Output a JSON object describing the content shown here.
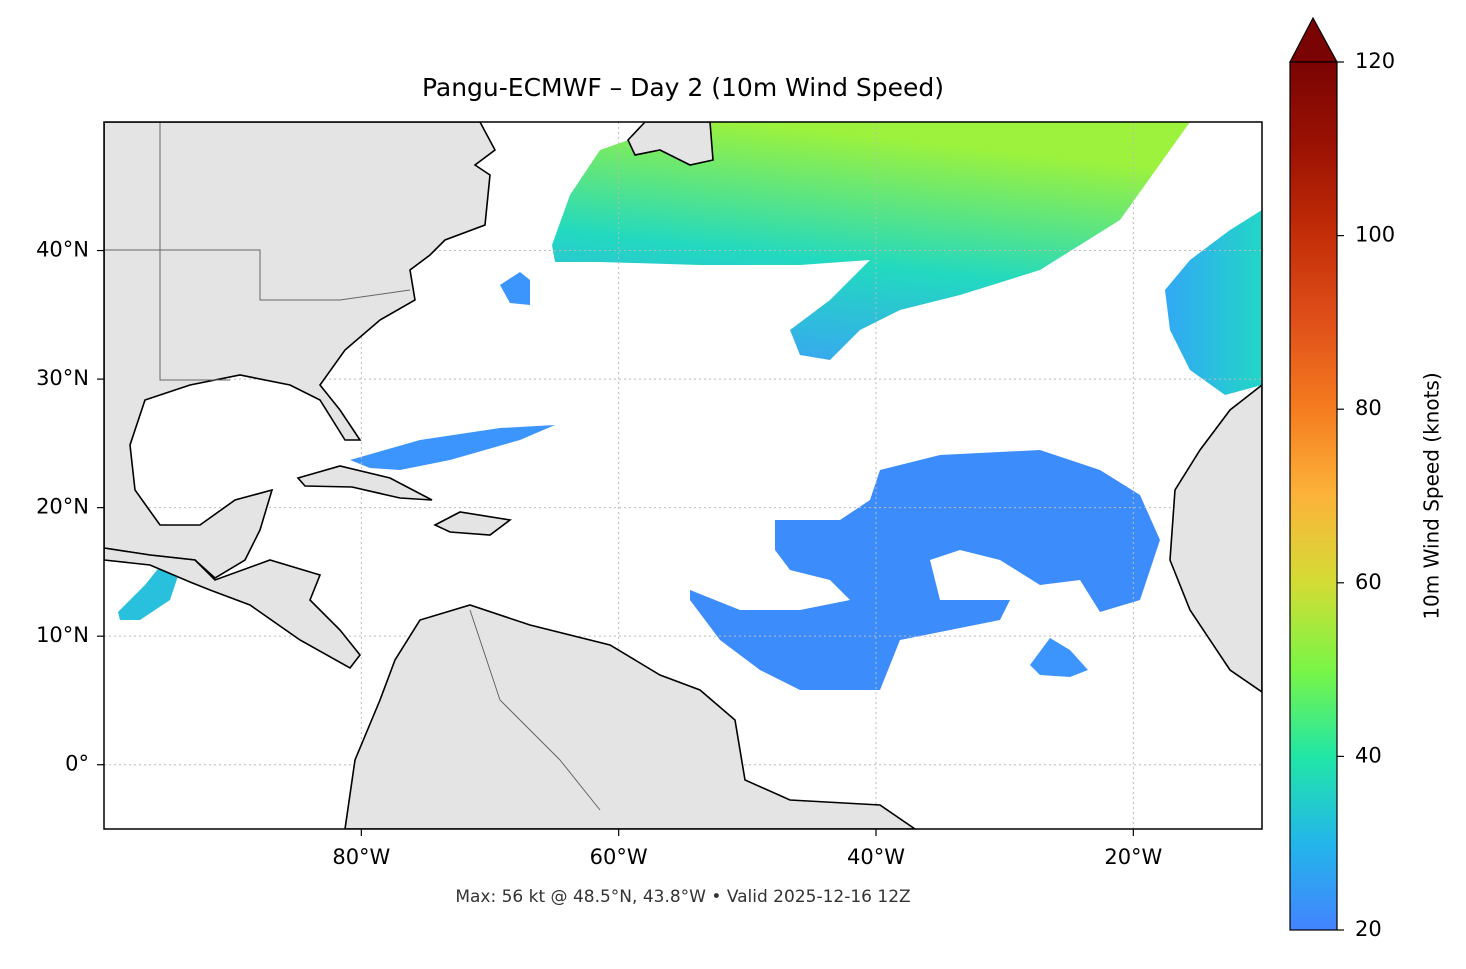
{
  "map": {
    "title": "Pangu-ECMWF – Day 2 (10m Wind Speed)",
    "xlim": [
      -100,
      -10
    ],
    "ylim": [
      -5,
      50
    ],
    "xticks": [
      {
        "value": -80,
        "label": "80°W"
      },
      {
        "value": -60,
        "label": "60°W"
      },
      {
        "value": -40,
        "label": "40°W"
      },
      {
        "value": -20,
        "label": "20°W"
      }
    ],
    "yticks": [
      {
        "value": 40,
        "label": "40°N"
      },
      {
        "value": 30,
        "label": "30°N"
      },
      {
        "value": 20,
        "label": "20°N"
      },
      {
        "value": 10,
        "label": "10°N"
      },
      {
        "value": 0,
        "label": "0°"
      }
    ],
    "footnote": "Max: 56 kt @ 48.5°N, 43.8°W • Valid 2025-12-16 12Z",
    "colorbar": {
      "label": "10m Wind Speed (knots)",
      "lim": [
        20,
        120
      ],
      "ticks": [
        20,
        40,
        60,
        80,
        100,
        120
      ]
    }
  }
}
